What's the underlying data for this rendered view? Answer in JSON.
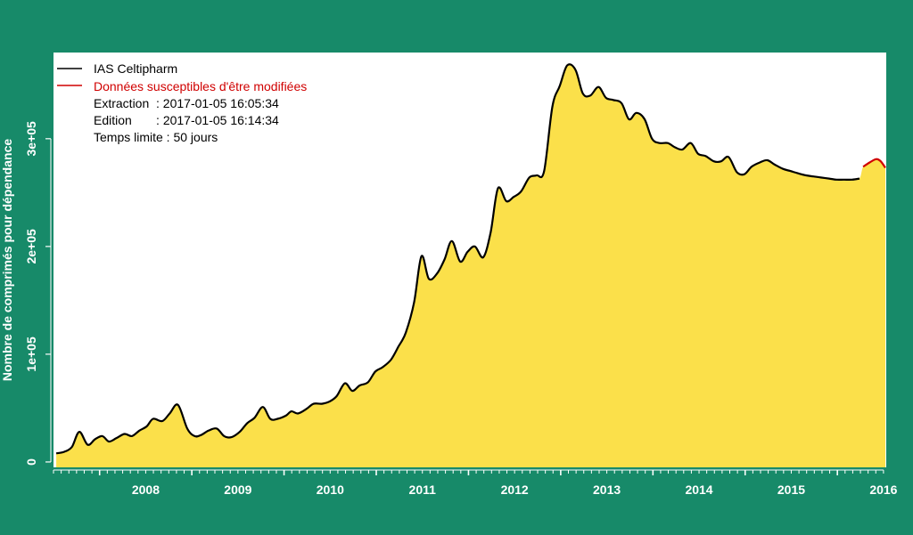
{
  "colors": {
    "background": "#178a69",
    "plot_background": "#ffffff",
    "area_fill": "#fbe04a",
    "line": "#000000",
    "provisional_line": "#d00000",
    "axis_text": "#ffffff"
  },
  "legend": {
    "series_label": "IAS Celtipharm",
    "provisional_label": "Données susceptibles d'être modifiées",
    "extraction": "Extraction  : 2017-01-05 16:05:34",
    "edition": "Edition       : 2017-01-05 16:14:34",
    "temps_limite": "Temps limite : 50 jours"
  },
  "chart_data": {
    "type": "area",
    "ylabel": "Nombre de comprimés pour dépendance",
    "xlabel": "",
    "xlim": [
      2007.5,
      2016.53
    ],
    "ylim": [
      -5000,
      380000
    ],
    "y_ticks": [
      0,
      100000,
      200000,
      300000
    ],
    "y_tick_labels": [
      "0",
      "1e+05",
      "2e+05",
      "3e+05"
    ],
    "x_ticks": [
      2008,
      2009,
      2010,
      2011,
      2012,
      2013,
      2014,
      2015,
      2016
    ],
    "x_tick_labels": [
      "2008",
      "2009",
      "2010",
      "2011",
      "2012",
      "2013",
      "2014",
      "2015",
      "2016"
    ],
    "grid": false,
    "legend_position": "top-left",
    "series": [
      {
        "name": "IAS Celtipharm",
        "x": [
          2007.53,
          2007.62,
          2007.7,
          2007.78,
          2007.87,
          2007.95,
          2008.03,
          2008.1,
          2008.18,
          2008.27,
          2008.35,
          2008.43,
          2008.51,
          2008.58,
          2008.68,
          2008.76,
          2008.85,
          2008.95,
          2009.03,
          2009.1,
          2009.18,
          2009.27,
          2009.35,
          2009.43,
          2009.52,
          2009.6,
          2009.68,
          2009.77,
          2009.85,
          2009.93,
          2010.02,
          2010.08,
          2010.15,
          2010.24,
          2010.32,
          2010.41,
          2010.49,
          2010.57,
          2010.66,
          2010.74,
          2010.82,
          2010.91,
          2010.99,
          2011.07,
          2011.16,
          2011.24,
          2011.32,
          2011.41,
          2011.49,
          2011.57,
          2011.66,
          2011.74,
          2011.82,
          2011.91,
          2011.99,
          2012.07,
          2012.16,
          2012.24,
          2012.32,
          2012.41,
          2012.49,
          2012.57,
          2012.66,
          2012.74,
          2012.82,
          2012.91,
          2012.99,
          2013.07,
          2013.16,
          2013.24,
          2013.32,
          2013.41,
          2013.49,
          2013.57,
          2013.66,
          2013.74,
          2013.82,
          2013.91,
          2013.99,
          2014.07,
          2014.16,
          2014.24,
          2014.32,
          2014.41,
          2014.49,
          2014.57,
          2014.66,
          2014.74,
          2014.82,
          2014.91,
          2014.99,
          2015.07,
          2015.16,
          2015.24,
          2015.32,
          2015.41,
          2015.49,
          2015.57,
          2015.66,
          2015.74,
          2015.82,
          2015.91,
          2015.99,
          2016.07,
          2016.16,
          2016.24,
          2016.32,
          2016.4
        ],
        "y": [
          8000,
          9500,
          14000,
          28000,
          16000,
          21000,
          24000,
          19000,
          22000,
          26000,
          24000,
          29000,
          33000,
          40000,
          38000,
          45000,
          53000,
          31000,
          24000,
          25000,
          29000,
          31000,
          24000,
          23000,
          28000,
          36000,
          41000,
          51000,
          40000,
          40000,
          43000,
          47000,
          45000,
          49000,
          54000,
          54000,
          56000,
          61000,
          73000,
          66000,
          71000,
          74000,
          84000,
          88000,
          95000,
          107000,
          120000,
          148000,
          191000,
          170000,
          175000,
          188000,
          205000,
          186000,
          195000,
          200000,
          190000,
          213000,
          254000,
          242000,
          246000,
          251000,
          264000,
          266000,
          270000,
          330000,
          349000,
          368000,
          364000,
          342000,
          340000,
          348000,
          338000,
          336000,
          333000,
          318000,
          324000,
          318000,
          300000,
          296000,
          296000,
          292000,
          290000,
          296000,
          286000,
          284000,
          279000,
          279000,
          283000,
          269000,
          267000,
          274000,
          278000,
          280000,
          276000,
          272000,
          270000,
          268000,
          266000,
          265000,
          264000,
          263000,
          262000,
          262000,
          262000,
          263000,
          263000,
          264000
        ]
      },
      {
        "name": "Données susceptibles d'être modifiées",
        "x": [
          2016.28,
          2016.35,
          2016.42,
          2016.47,
          2016.52
        ],
        "y": [
          274000,
          278000,
          281000,
          279000,
          273000
        ]
      }
    ]
  }
}
